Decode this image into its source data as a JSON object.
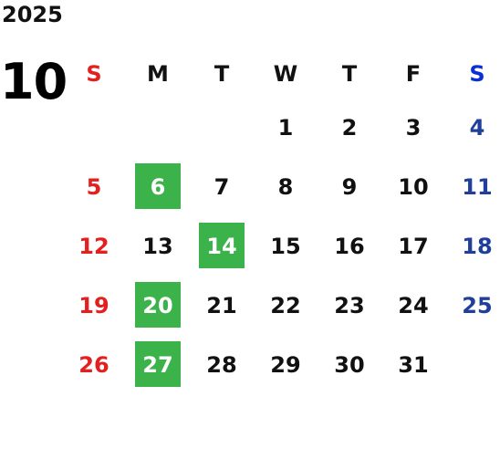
{
  "calendar": {
    "year": "2025",
    "month": "10",
    "weekday_headers": [
      "S",
      "M",
      "T",
      "W",
      "T",
      "F",
      "S"
    ],
    "highlight_color": "#3bb24a",
    "sunday_color": "#e3201f",
    "saturday_color": "#1f3f9a",
    "highlighted_days": [
      "6",
      "14",
      "20",
      "27"
    ],
    "weeks": [
      [
        "",
        "",
        "",
        "1",
        "2",
        "3",
        "4"
      ],
      [
        "5",
        "6",
        "7",
        "8",
        "9",
        "10",
        "11"
      ],
      [
        "12",
        "13",
        "14",
        "15",
        "16",
        "17",
        "18"
      ],
      [
        "19",
        "20",
        "21",
        "22",
        "23",
        "24",
        "25"
      ],
      [
        "26",
        "27",
        "28",
        "29",
        "30",
        "31",
        ""
      ]
    ]
  }
}
